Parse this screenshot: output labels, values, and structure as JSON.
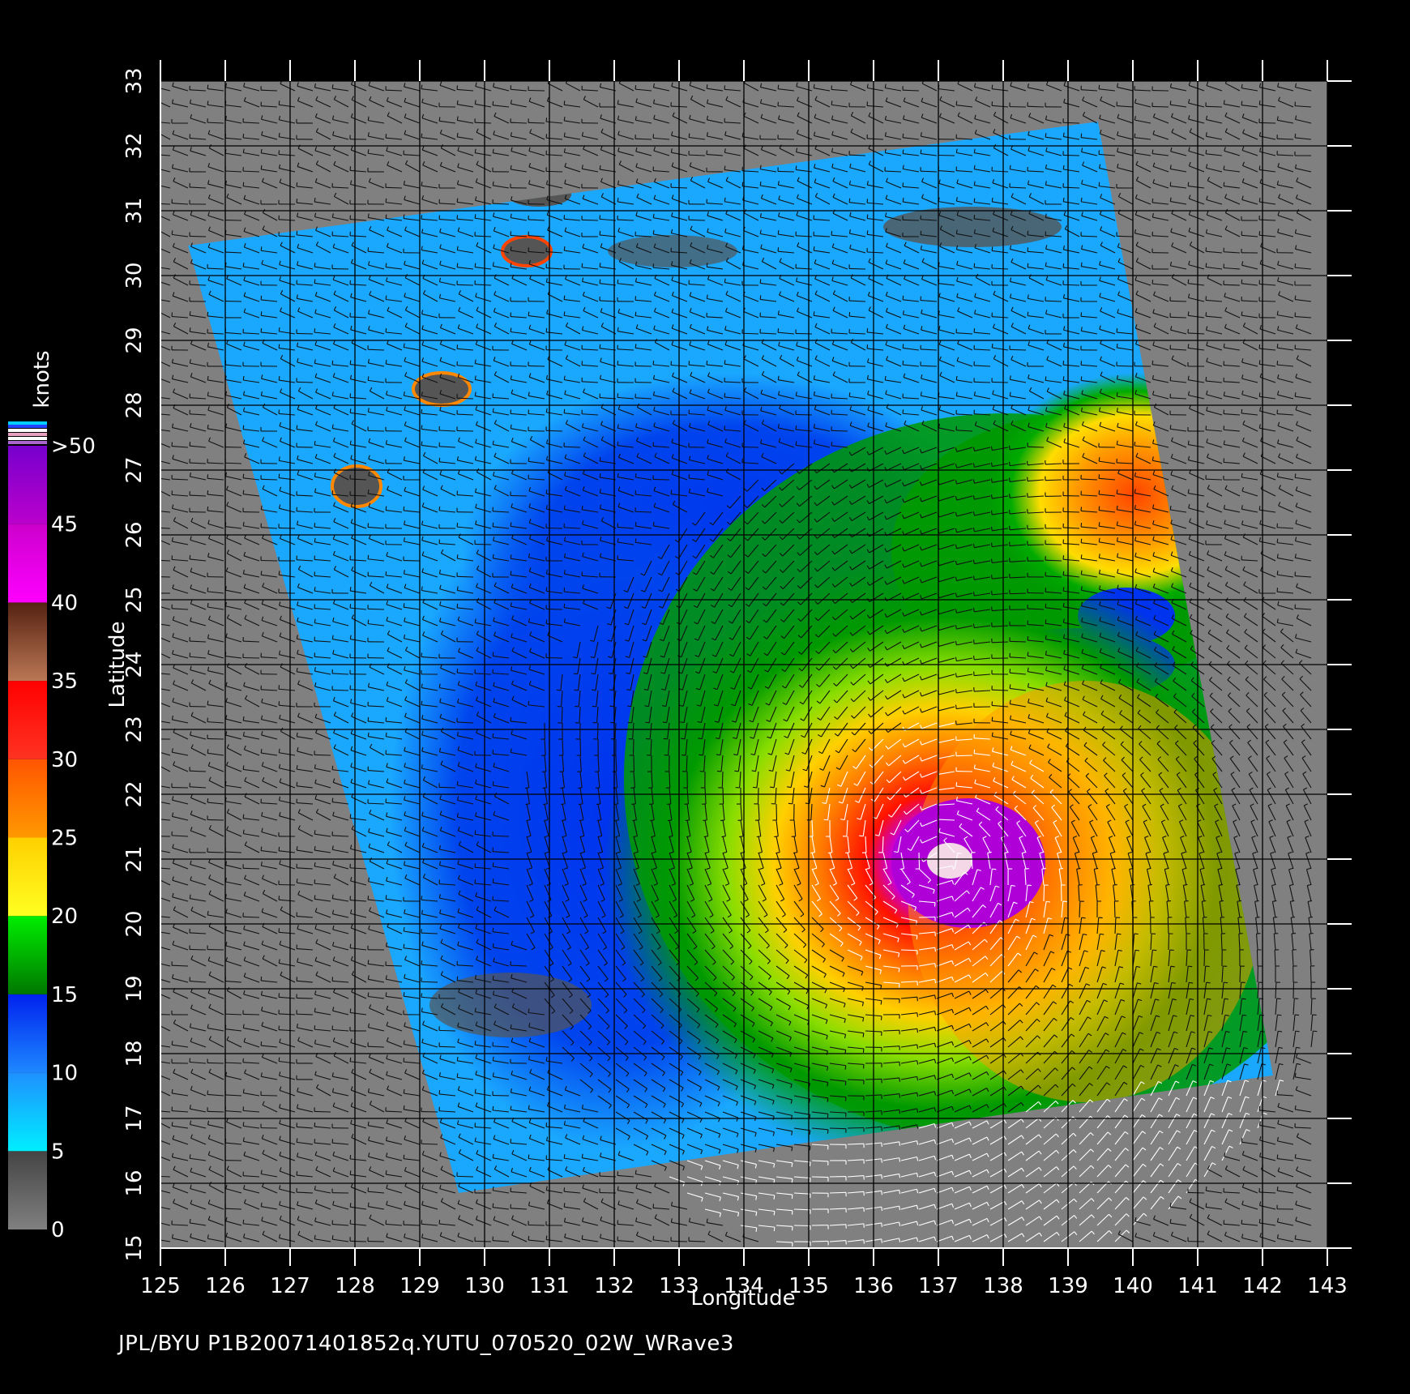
{
  "map": {
    "caption": "JPL/BYU  P1B20071401852q.YUTU_070520_02W_WRave3",
    "x_axis_label": "Longitude",
    "y_axis_label": "Latitude",
    "lon_ticks": [
      "125",
      "126",
      "127",
      "128",
      "129",
      "130",
      "131",
      "132",
      "133",
      "134",
      "135",
      "136",
      "137",
      "138",
      "139",
      "140",
      "141",
      "142",
      "143"
    ],
    "lat_ticks": [
      "15",
      "16",
      "17",
      "18",
      "19",
      "20",
      "21",
      "22",
      "23",
      "24",
      "25",
      "26",
      "27",
      "28",
      "29",
      "30",
      "31",
      "32",
      "33"
    ],
    "lon_range": [
      125,
      143
    ],
    "lat_range": [
      15,
      33
    ],
    "storm_center": {
      "lon": 137.0,
      "lat": 21.0
    },
    "colors": {
      "land_background": "#808080",
      "frame_background": "#000000",
      "grid": "#000000"
    }
  },
  "legend": {
    "unit": "knots",
    "labels": [
      "0",
      "5",
      "10",
      "15",
      "20",
      "25",
      "30",
      "35",
      "40",
      "45",
      ">50"
    ],
    "bands": [
      {
        "from": 0,
        "to": 5,
        "top": "#444444",
        "bottom": "#808080"
      },
      {
        "from": 5,
        "to": 10,
        "top": "#1E90FF",
        "bottom": "#00EEFF"
      },
      {
        "from": 10,
        "to": 15,
        "top": "#0022EE",
        "bottom": "#1E88FF"
      },
      {
        "from": 15,
        "to": 20,
        "top": "#00EE00",
        "bottom": "#007700"
      },
      {
        "from": 20,
        "to": 25,
        "top": "#FFD000",
        "bottom": "#FFFF22"
      },
      {
        "from": 25,
        "to": 30,
        "top": "#FF5500",
        "bottom": "#FF9900"
      },
      {
        "from": 30,
        "to": 35,
        "top": "#FF0000",
        "bottom": "#FF3322"
      },
      {
        "from": 35,
        "to": 40,
        "top": "#552211",
        "bottom": "#BB7755"
      },
      {
        "from": 40,
        "to": 45,
        "top": "#CC00CC",
        "bottom": "#FF00FF"
      },
      {
        "from": 45,
        "to": 50,
        "top": "#7700CC",
        "bottom": "#BB00CC"
      }
    ]
  }
}
